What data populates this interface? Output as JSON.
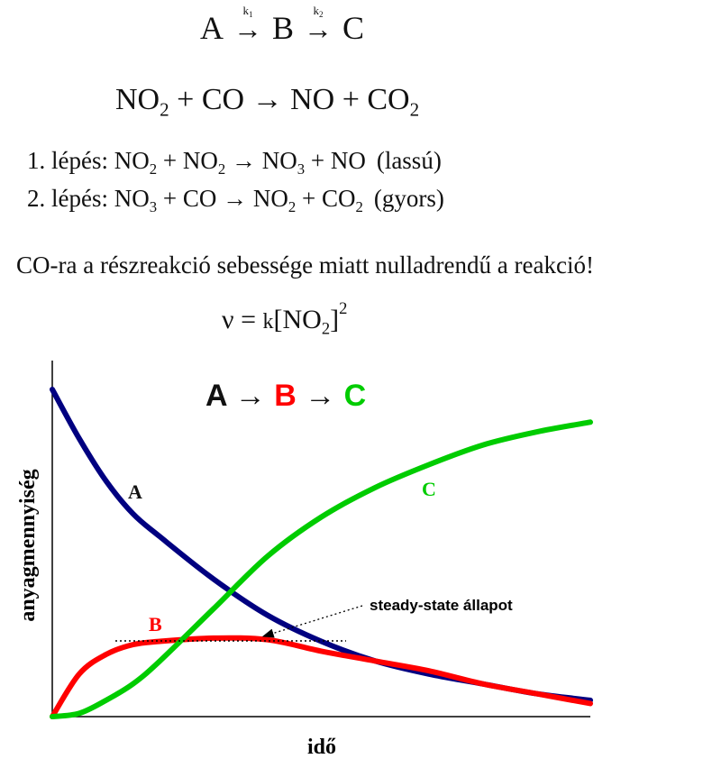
{
  "scheme": {
    "a": "A",
    "k1": "k",
    "k1_sub": "1",
    "b": "B",
    "k2": "k",
    "k2_sub": "2",
    "c": "C",
    "arrow": "→"
  },
  "equation": {
    "no": "NO",
    "sub2": "2",
    "plus": " + ",
    "co": "CO",
    "arrow": " → ",
    "no_out": "NO",
    "co2": "CO"
  },
  "steps": [
    {
      "label": "1. lépés:",
      "r1": "NO",
      "r1_sub": "2",
      "r2": "NO",
      "r2_sub": "2",
      "p1": "NO",
      "p1_sub": "3",
      "p2": "NO",
      "speed": "(lassú)"
    },
    {
      "label": "2. lépés:",
      "r1": "NO",
      "r1_sub": "3",
      "r2": "CO",
      "p1": "NO",
      "p1_sub": "2",
      "p2": "CO",
      "p2_sub": "2",
      "speed": "(gyors)"
    }
  ],
  "note": "CO-ra a részreakció sebessége miatt nulladrendű a reakció!",
  "rate_law": {
    "nu": "ν = ",
    "k": "k",
    "open": "[NO",
    "sub": "2",
    "close": "]",
    "sup": "2"
  },
  "colors": {
    "A": "#000080",
    "B": "#ff0000",
    "C": "#00cc00",
    "axis": "#000000"
  },
  "chart_data": {
    "type": "line",
    "title": {
      "a": "A",
      "arrow": " → ",
      "b": "B",
      "c": "C"
    },
    "xlabel": "idő",
    "ylabel": "anyagmennyiség",
    "xlim": [
      0,
      1
    ],
    "ylim": [
      0,
      1
    ],
    "grid": false,
    "series": [
      {
        "name": "A",
        "x": [
          0,
          0.05,
          0.1,
          0.15,
          0.2,
          0.3,
          0.4,
          0.5,
          0.6,
          0.7,
          0.8,
          0.9,
          1.0
        ],
        "y": [
          1.0,
          0.85,
          0.72,
          0.62,
          0.55,
          0.42,
          0.31,
          0.23,
          0.17,
          0.13,
          0.1,
          0.07,
          0.05
        ]
      },
      {
        "name": "B",
        "x": [
          0,
          0.05,
          0.1,
          0.15,
          0.2,
          0.3,
          0.4,
          0.5,
          0.6,
          0.7,
          0.8,
          0.9,
          1.0
        ],
        "y": [
          0,
          0.13,
          0.19,
          0.22,
          0.23,
          0.24,
          0.235,
          0.2,
          0.17,
          0.14,
          0.1,
          0.07,
          0.04
        ]
      },
      {
        "name": "C",
        "x": [
          0,
          0.05,
          0.1,
          0.15,
          0.2,
          0.3,
          0.4,
          0.5,
          0.6,
          0.7,
          0.8,
          0.9,
          1.0
        ],
        "y": [
          0,
          0.01,
          0.05,
          0.1,
          0.17,
          0.33,
          0.49,
          0.61,
          0.7,
          0.77,
          0.83,
          0.87,
          0.9
        ]
      }
    ],
    "annotation": "steady-state állapot"
  }
}
